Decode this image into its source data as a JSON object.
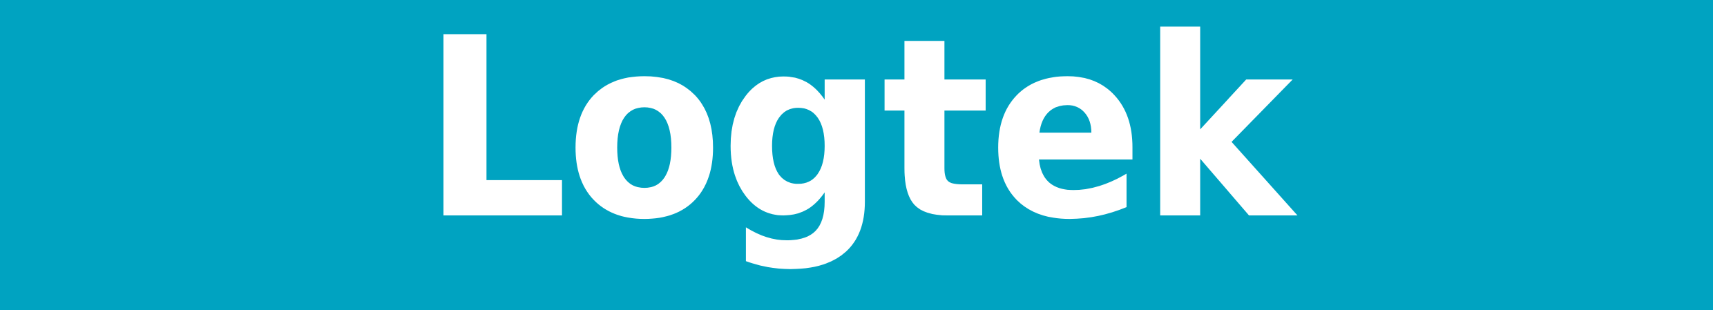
{
  "brand": {
    "name": "Logtek",
    "background_color": "#00A3C1",
    "text_color": "#FFFFFF"
  }
}
